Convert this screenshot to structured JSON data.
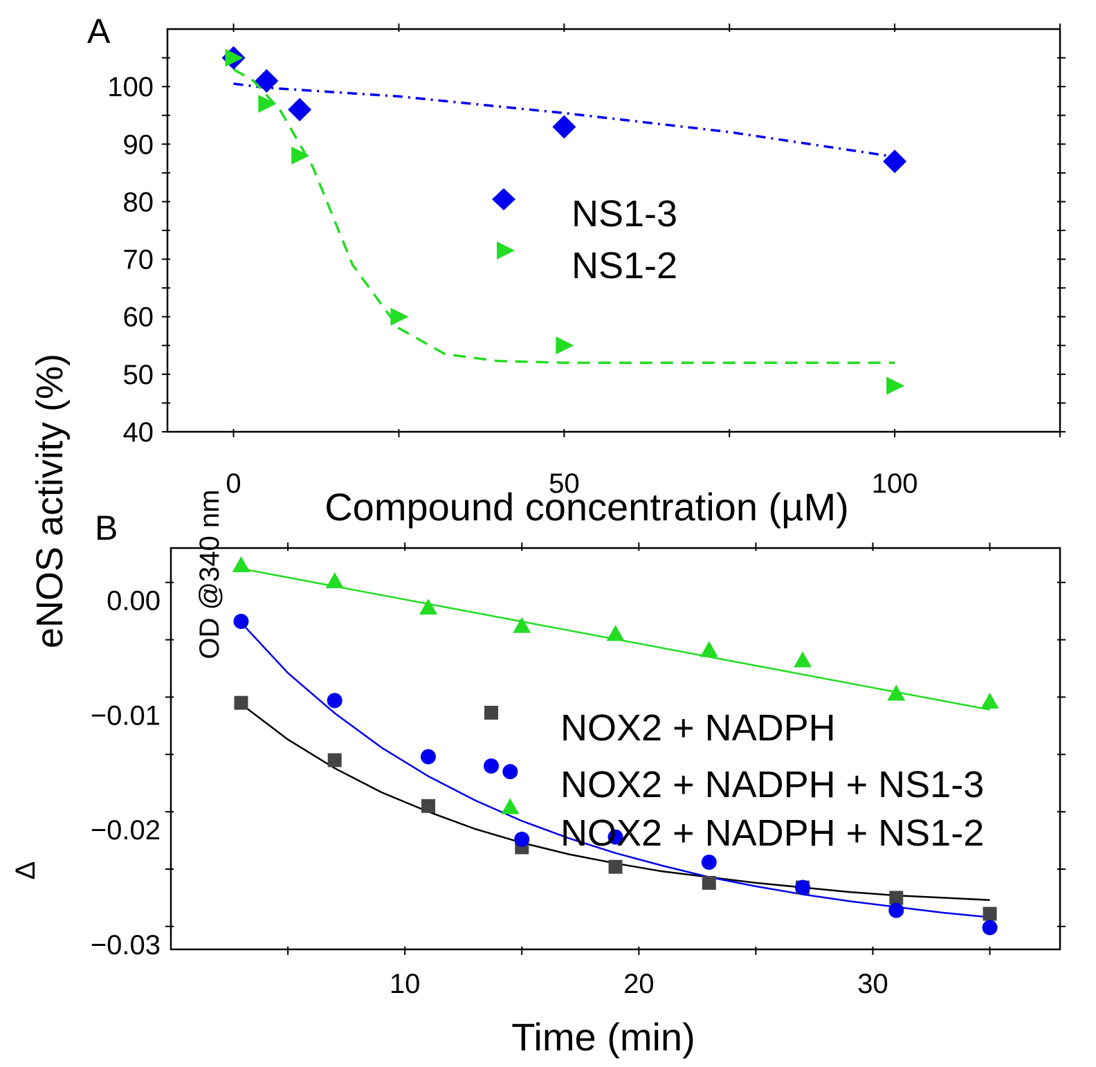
{
  "chart_data": [
    {
      "panel": "A",
      "type": "scatter",
      "xlabel": "Compound concentration (µM)",
      "ylabel": "eNOS activity (%)",
      "xlim": [
        -10,
        125
      ],
      "ylim": [
        40,
        110
      ],
      "x_ticks": [
        0,
        50,
        100
      ],
      "y_ticks": [
        40,
        50,
        60,
        70,
        80,
        90,
        100
      ],
      "legend_position": "center",
      "series": [
        {
          "name": "NS1-3",
          "marker": "diamond",
          "color": "#0000ee",
          "x": [
            0,
            5,
            10,
            50,
            100
          ],
          "y": [
            105,
            101,
            96,
            93,
            87
          ],
          "fit": {
            "style": "dash-dot",
            "x": [
              0,
              5,
              25,
              50,
              75,
              100
            ],
            "y": [
              100.5,
              99.8,
              98.3,
              95.4,
              92.1,
              87.8
            ]
          }
        },
        {
          "name": "NS1-2",
          "marker": "triangle-right",
          "color": "#22dd22",
          "x": [
            0,
            5,
            10,
            25,
            50,
            100
          ],
          "y": [
            105,
            97,
            88,
            60,
            55,
            48
          ],
          "fit": {
            "style": "dashed",
            "x": [
              0,
              3,
              7,
              12,
              18,
              25,
              32,
              40,
              50,
              60,
              80,
              100
            ],
            "y": [
              103,
              101,
              96,
              86,
              69,
              58,
              53.5,
              52.3,
              52,
              52,
              52,
              52
            ]
          }
        }
      ]
    },
    {
      "panel": "B",
      "type": "scatter",
      "xlabel": "Time (min)",
      "ylabel": "OD @340 nm",
      "ylabel_prefix": "Δ",
      "xlim": [
        0,
        38
      ],
      "ylim": [
        -0.032,
        0.003
      ],
      "x_ticks": [
        10,
        20,
        30
      ],
      "y_ticks": [
        0.0,
        -0.01,
        -0.02,
        -0.03
      ],
      "y_tick_labels": [
        "0.00",
        "−0.01",
        "−0.02",
        "−0.03"
      ],
      "legend_position": "center-right",
      "series": [
        {
          "name": "NOX2 + NADPH",
          "marker": "square",
          "color": "#444444",
          "x": [
            3,
            7,
            11,
            15,
            19,
            23,
            27,
            31,
            35
          ],
          "y": [
            -0.0105,
            -0.0155,
            -0.0195,
            -0.0231,
            -0.0248,
            -0.0262,
            -0.0266,
            -0.0275,
            -0.0289
          ],
          "fit": {
            "style": "solid",
            "color": "#000000",
            "x": [
              3,
              5,
              7,
              9,
              11,
              13,
              15,
              17,
              19,
              21,
              23,
              25,
              27,
              29,
              31,
              33,
              35
            ],
            "y": [
              -0.0106,
              -0.0137,
              -0.0162,
              -0.0183,
              -0.02,
              -0.0215,
              -0.0227,
              -0.0237,
              -0.0245,
              -0.0252,
              -0.0257,
              -0.0262,
              -0.0266,
              -0.027,
              -0.0273,
              -0.0275,
              -0.0277
            ]
          }
        },
        {
          "name": "NOX2 + NADPH + NS1-3",
          "marker": "circle",
          "color": "#0000ee",
          "x": [
            3,
            7,
            11,
            14.5,
            15,
            19,
            23,
            27,
            31,
            35
          ],
          "y": [
            -0.0034,
            -0.0103,
            -0.0152,
            -0.0165,
            -0.0224,
            -0.0222,
            -0.0244,
            -0.0266,
            -0.0286,
            -0.0301
          ],
          "fit": {
            "style": "solid",
            "color": "#0000ee",
            "x": [
              3,
              5,
              7,
              9,
              11,
              13,
              15,
              17,
              19,
              21,
              23,
              25,
              27,
              29,
              31,
              33,
              35
            ],
            "y": [
              -0.0035,
              -0.0079,
              -0.0114,
              -0.0144,
              -0.0169,
              -0.019,
              -0.0208,
              -0.0223,
              -0.0236,
              -0.0247,
              -0.0257,
              -0.0265,
              -0.0272,
              -0.0278,
              -0.0283,
              -0.0288,
              -0.0292
            ]
          }
        },
        {
          "name": "NOX2 + NADPH + NS1-2",
          "marker": "triangle-up",
          "color": "#22dd22",
          "x": [
            3,
            7,
            11,
            14.5,
            15,
            19,
            23,
            27,
            31,
            35
          ],
          "y": [
            0.0015,
            0.0001,
            -0.0022,
            -0.0196,
            -0.0038,
            -0.0045,
            -0.0059,
            -0.0068,
            -0.0097,
            -0.0104
          ],
          "fit": {
            "style": "solid",
            "color": "#22dd22",
            "x": [
              3,
              35
            ],
            "y": [
              0.0012,
              -0.0111
            ]
          }
        }
      ]
    }
  ],
  "labels": {
    "panel_a_letter": "A",
    "panel_b_letter": "B",
    "a_xlabel": "Compound concentration (µM)",
    "a_ylabel": "eNOS activity (%)",
    "b_xlabel": "Time (min)",
    "b_ylabel": "OD @340 nm",
    "b_ylabel_prefix": "Δ",
    "legend_a": [
      "NS1-3",
      "NS1-2"
    ],
    "legend_b": [
      "NOX2 + NADPH",
      "NOX2 + NADPH + NS1-3",
      "NOX2 + NADPH + NS1-2"
    ]
  }
}
